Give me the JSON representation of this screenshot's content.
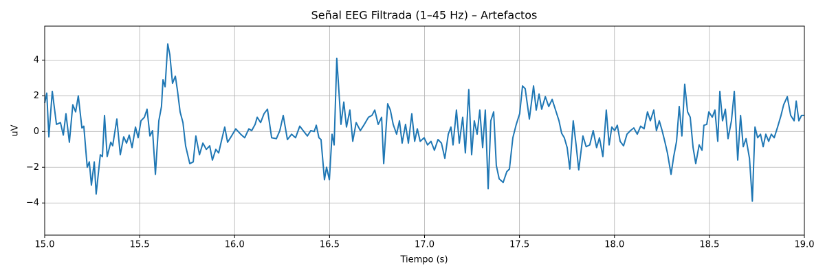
{
  "chart_data": {
    "type": "line",
    "title": "Señal EEG Filtrada (1–45 Hz) – Artefactos",
    "x_label": "Tiempo (s)",
    "y_label": "uV",
    "color": "#1f77b4",
    "grid": true,
    "xlim": [
      15,
      19
    ],
    "ylim": [
      -5.8,
      5.9
    ],
    "xticks": [
      {
        "value": 15,
        "label": "15.0"
      },
      15.5,
      {
        "value": 16,
        "label": "16.0"
      },
      16.5,
      {
        "value": 17,
        "label": "17.0"
      },
      17.5,
      {
        "value": 18,
        "label": "18.0"
      },
      18.5,
      {
        "value": 19,
        "label": "19.0"
      }
    ],
    "yticks": [
      {
        "value": -4,
        "label": "−4"
      },
      {
        "value": -2,
        "label": "−2"
      },
      0,
      2,
      4
    ],
    "x": [
      15.0,
      15.011,
      15.022,
      15.04,
      15.062,
      15.083,
      15.098,
      15.112,
      15.13,
      15.148,
      15.163,
      15.177,
      15.196,
      15.206,
      15.224,
      15.235,
      15.246,
      15.261,
      15.271,
      15.293,
      15.304,
      15.315,
      15.329,
      15.348,
      15.358,
      15.38,
      15.398,
      15.416,
      15.431,
      15.445,
      15.46,
      15.478,
      15.492,
      15.507,
      15.525,
      15.539,
      15.554,
      15.568,
      15.583,
      15.601,
      15.615,
      15.623,
      15.634,
      15.648,
      15.659,
      15.673,
      15.688,
      15.699,
      15.713,
      15.728,
      15.742,
      15.764,
      15.782,
      15.796,
      15.815,
      15.833,
      15.851,
      15.869,
      15.883,
      15.901,
      15.916,
      15.93,
      15.948,
      15.963,
      15.981,
      16.006,
      16.032,
      16.053,
      16.075,
      16.09,
      16.108,
      16.119,
      16.137,
      16.155,
      16.173,
      16.195,
      16.22,
      16.238,
      16.256,
      16.278,
      16.3,
      16.321,
      16.343,
      16.361,
      16.383,
      16.401,
      16.419,
      16.43,
      16.444,
      16.455,
      16.473,
      16.484,
      16.499,
      16.513,
      16.524,
      16.538,
      16.549,
      16.56,
      16.575,
      16.589,
      16.607,
      16.622,
      16.64,
      16.662,
      16.683,
      16.705,
      16.723,
      16.738,
      16.756,
      16.774,
      16.785,
      16.806,
      16.82,
      16.835,
      16.853,
      16.868,
      16.882,
      16.9,
      16.915,
      16.933,
      16.948,
      16.962,
      16.977,
      16.998,
      17.016,
      17.034,
      17.052,
      17.071,
      17.089,
      17.107,
      17.125,
      17.139,
      17.15,
      17.168,
      17.183,
      17.201,
      17.215,
      17.233,
      17.248,
      17.262,
      17.277,
      17.291,
      17.306,
      17.32,
      17.335,
      17.349,
      17.364,
      17.378,
      17.393,
      17.414,
      17.433,
      17.447,
      17.465,
      17.483,
      17.501,
      17.516,
      17.53,
      17.552,
      17.574,
      17.588,
      17.603,
      17.617,
      17.636,
      17.654,
      17.672,
      17.69,
      17.708,
      17.722,
      17.736,
      17.751,
      17.765,
      17.783,
      17.798,
      17.812,
      17.834,
      17.851,
      17.87,
      17.888,
      17.906,
      17.921,
      17.939,
      17.957,
      17.972,
      17.986,
      18.001,
      18.015,
      18.03,
      18.048,
      18.066,
      18.084,
      18.102,
      18.12,
      18.138,
      18.156,
      18.174,
      18.189,
      18.207,
      18.221,
      18.236,
      18.251,
      18.265,
      18.279,
      18.298,
      18.312,
      18.327,
      18.341,
      18.355,
      18.37,
      18.385,
      18.399,
      18.414,
      18.428,
      18.446,
      18.461,
      18.471,
      18.486,
      18.497,
      18.515,
      18.529,
      18.544,
      18.555,
      18.569,
      18.584,
      18.598,
      18.616,
      18.631,
      18.649,
      18.664,
      18.678,
      18.693,
      18.711,
      18.726,
      18.74,
      18.754,
      18.769,
      18.783,
      18.797,
      18.812,
      18.826,
      18.841,
      18.859,
      18.877,
      18.891,
      18.91,
      18.928,
      18.946,
      18.957,
      18.971,
      18.985,
      19.0
    ],
    "values": [
      1.6,
      2.15,
      -0.3,
      2.25,
      0.4,
      0.5,
      -0.2,
      1.0,
      -0.6,
      1.5,
      1.1,
      2.0,
      0.2,
      0.3,
      -2.0,
      -1.7,
      -3.0,
      -1.7,
      -3.5,
      -1.3,
      -1.4,
      0.9,
      -1.4,
      -0.6,
      -0.8,
      0.7,
      -1.3,
      -0.3,
      -0.65,
      -0.2,
      -0.9,
      0.25,
      -0.35,
      0.6,
      0.8,
      1.25,
      -0.25,
      0.05,
      -2.4,
      0.6,
      1.4,
      2.9,
      2.5,
      4.9,
      4.3,
      2.7,
      3.1,
      2.3,
      1.1,
      0.5,
      -0.8,
      -1.8,
      -1.7,
      -0.25,
      -1.3,
      -0.65,
      -1.0,
      -0.8,
      -1.6,
      -1.0,
      -1.2,
      -0.55,
      0.25,
      -0.6,
      -0.3,
      0.15,
      -0.15,
      -0.35,
      0.15,
      0.05,
      0.4,
      0.8,
      0.5,
      1.0,
      1.25,
      -0.35,
      -0.4,
      0.05,
      0.9,
      -0.45,
      -0.15,
      -0.35,
      0.3,
      0.05,
      -0.25,
      0.05,
      0.0,
      0.35,
      -0.35,
      -0.45,
      -2.7,
      -2.0,
      -2.7,
      -0.15,
      -0.75,
      4.1,
      2.3,
      0.4,
      1.65,
      0.25,
      1.2,
      -0.55,
      0.5,
      0.05,
      0.4,
      0.8,
      0.9,
      1.2,
      0.4,
      0.8,
      -1.8,
      1.55,
      1.2,
      0.4,
      -0.15,
      0.6,
      -0.65,
      0.4,
      -0.65,
      1.0,
      -0.55,
      0.15,
      -0.55,
      -0.35,
      -0.75,
      -0.55,
      -1.05,
      -0.45,
      -0.65,
      -1.5,
      -0.15,
      0.25,
      -0.75,
      1.2,
      -0.65,
      0.8,
      -1.2,
      2.35,
      -1.3,
      0.6,
      -0.15,
      1.2,
      -0.9,
      1.2,
      -3.2,
      0.6,
      1.1,
      -1.9,
      -2.65,
      -2.85,
      -2.25,
      -2.1,
      -0.35,
      0.4,
      1.0,
      2.55,
      2.4,
      0.7,
      2.55,
      1.2,
      2.1,
      1.25,
      1.95,
      1.4,
      1.8,
      1.2,
      0.6,
      -0.1,
      -0.35,
      -0.9,
      -2.1,
      0.6,
      -0.75,
      -2.15,
      -0.25,
      -0.85,
      -0.75,
      0.05,
      -0.9,
      -0.35,
      -1.4,
      1.2,
      -0.75,
      0.25,
      0.05,
      0.35,
      -0.55,
      -0.8,
      -0.15,
      0.05,
      0.2,
      -0.15,
      0.3,
      0.15,
      1.1,
      0.6,
      1.2,
      0.05,
      0.6,
      0.05,
      -0.55,
      -1.2,
      -2.4,
      -1.4,
      -0.55,
      1.4,
      -0.25,
      2.65,
      1.1,
      0.8,
      -0.9,
      -1.8,
      -0.75,
      -1.05,
      0.35,
      0.4,
      1.1,
      0.8,
      1.2,
      -0.55,
      2.25,
      0.6,
      1.25,
      -0.4,
      0.6,
      2.25,
      -1.6,
      0.9,
      -0.85,
      -0.4,
      -1.5,
      -3.9,
      0.25,
      -0.35,
      -0.15,
      -0.85,
      -0.15,
      -0.55,
      -0.15,
      -0.35,
      0.25,
      0.9,
      1.5,
      1.95,
      0.9,
      0.6,
      1.7,
      0.6,
      0.9,
      0.9
    ]
  }
}
